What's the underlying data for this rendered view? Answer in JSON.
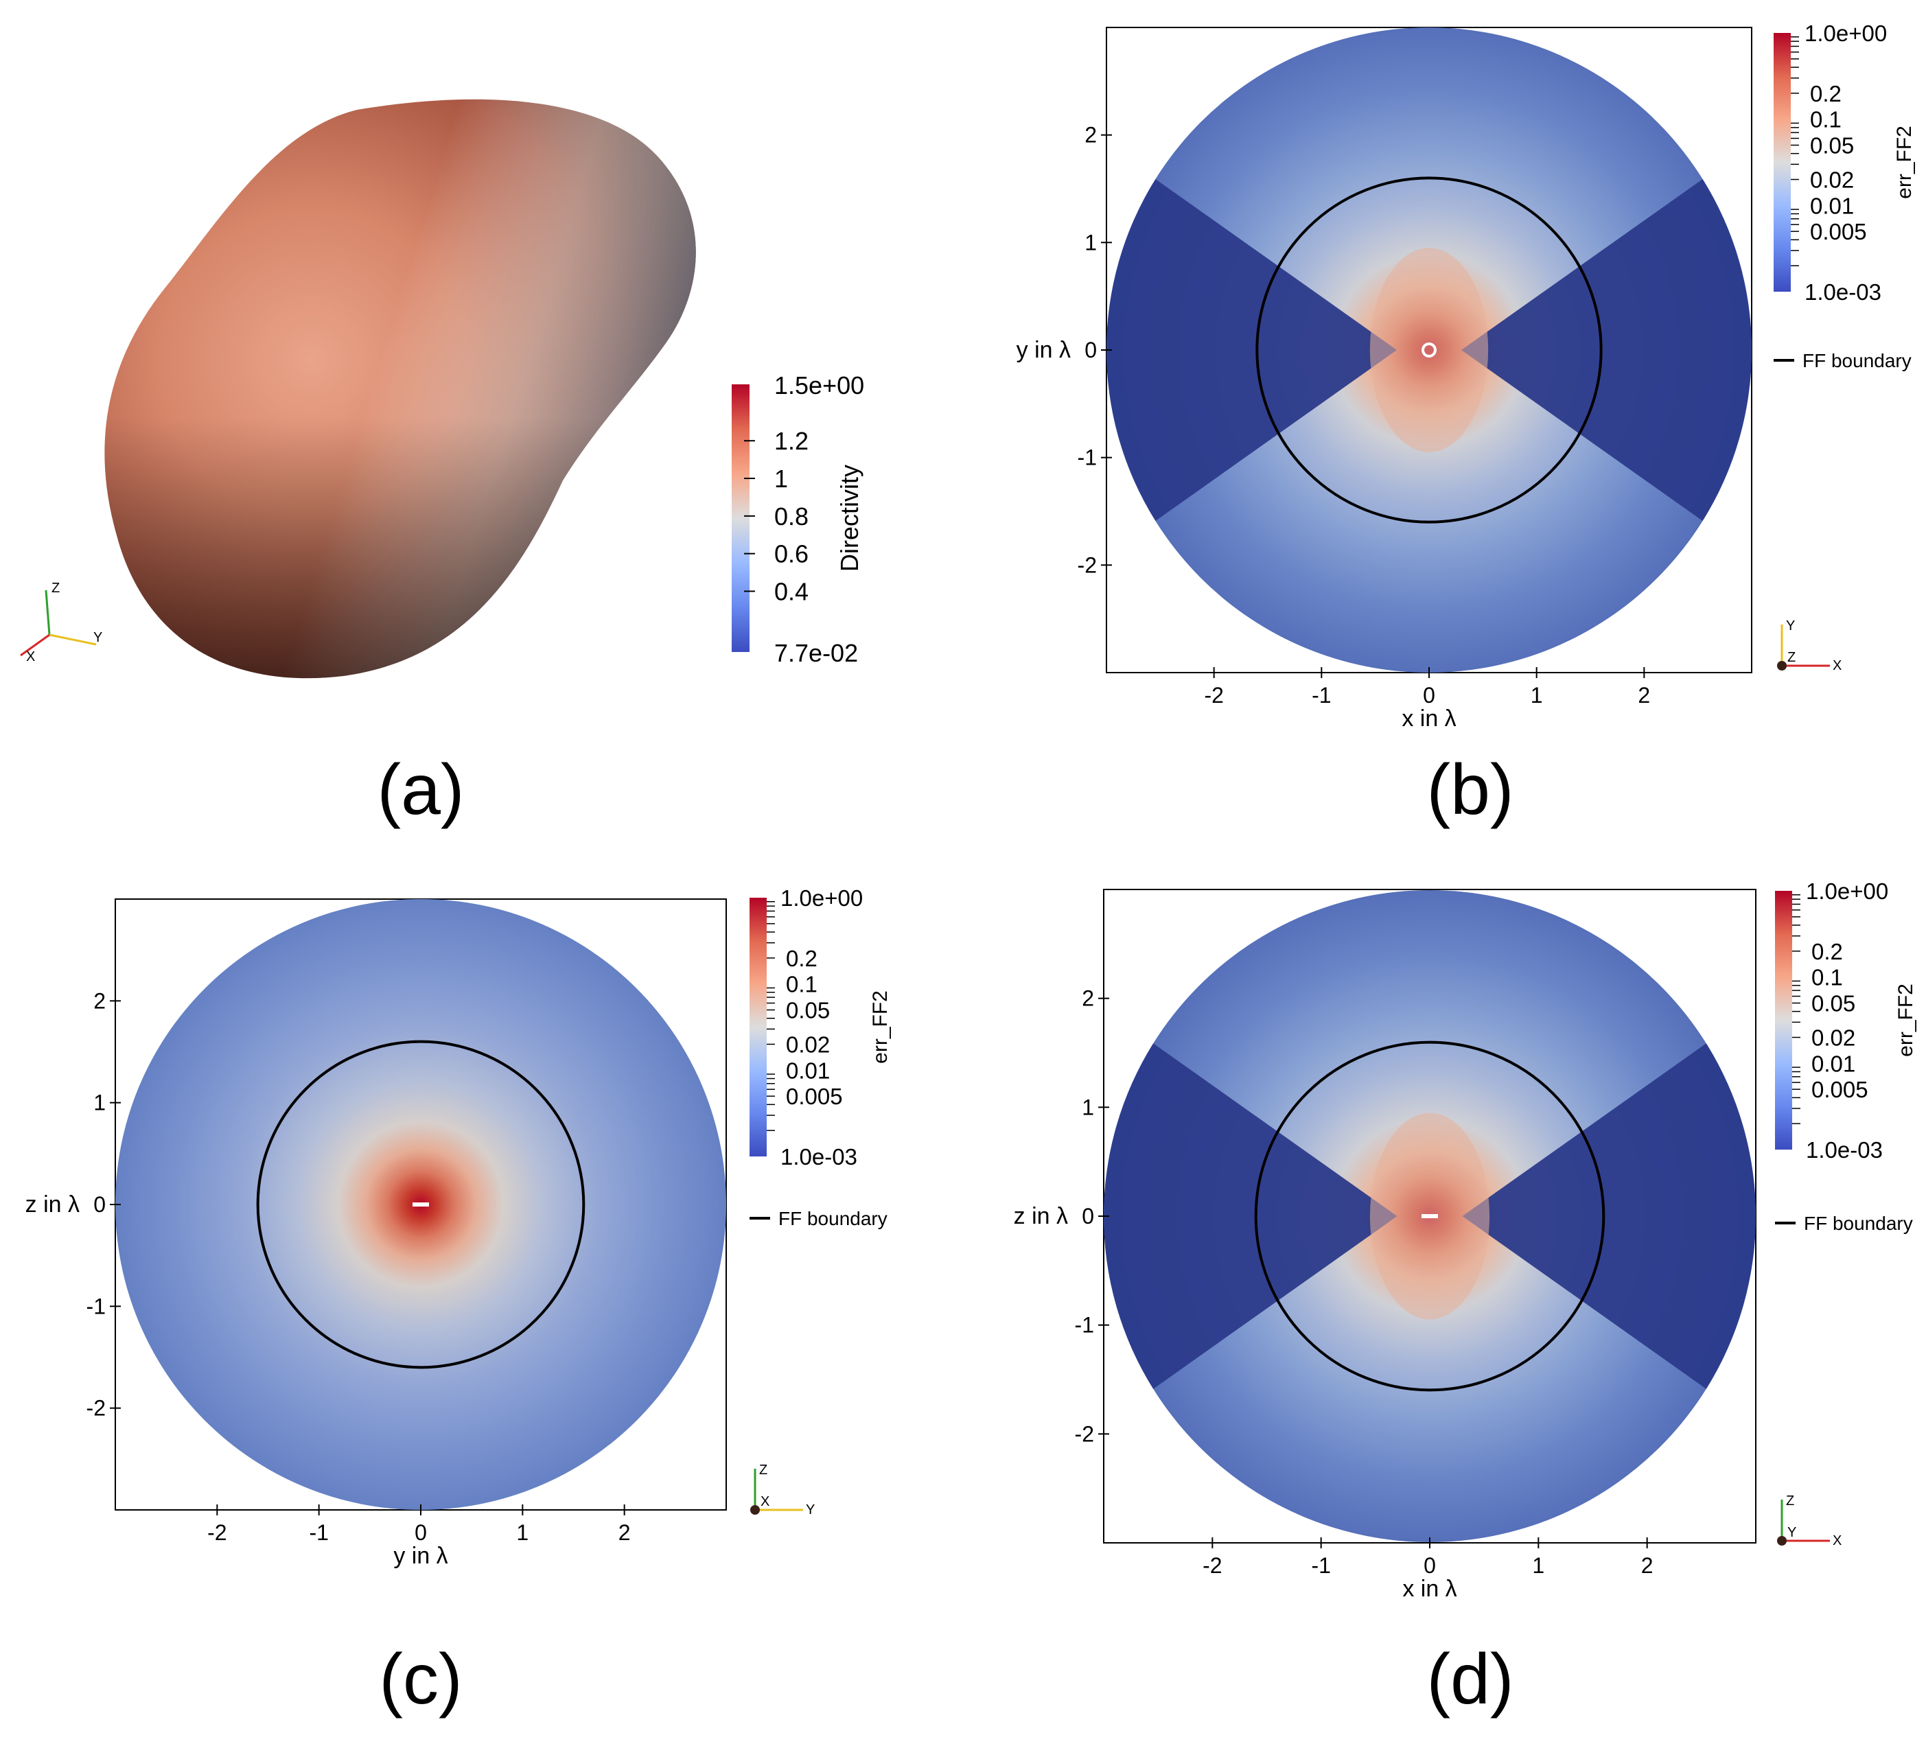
{
  "colormap": [
    "#3b4cc0",
    "#6788ee",
    "#9abbff",
    "#dddddd",
    "#f7a789",
    "#e26952",
    "#b40426"
  ],
  "shading_colors": {
    "dark_lobe": "#2b3a8a",
    "outer_blue": "#4f68b3",
    "frame": "#000000",
    "marker": "#ffffff"
  },
  "axes_triad_colors": {
    "x": "#d62728",
    "y": "#e8c020",
    "z": "#2ca02c",
    "origin": "#3a1f17"
  },
  "panels": {
    "a": {
      "label": "(a)",
      "colorbar": {
        "title": "Directivity",
        "max_label": "1.5e+00",
        "min_label": "7.7e-02",
        "ticks": [
          "1.2",
          "1",
          "0.8",
          "0.6",
          "0.4"
        ],
        "range": [
          0.077,
          1.5
        ]
      },
      "triad": {
        "vertical": "Z",
        "right": "Y",
        "left": "X"
      }
    },
    "b": {
      "label": "(b)",
      "triad": {
        "up": "Y",
        "right": "X",
        "origin": "Z"
      }
    },
    "c": {
      "label": "(c)",
      "triad": {
        "up": "Z",
        "right": "Y",
        "origin": "X"
      }
    },
    "d": {
      "label": "(d)",
      "triad": {
        "up": "Z",
        "right": "X",
        "origin": "Y"
      }
    }
  },
  "chart_data": [
    {
      "type": "surface",
      "panel": "a",
      "colorbar_title": "Directivity",
      "colorbar_range": [
        0.077,
        1.5
      ],
      "colorbar_ticks": [
        1.2,
        1,
        0.8,
        0.6,
        0.4
      ],
      "colorbar_end_labels": [
        "1.5e+00",
        "7.7e-02"
      ]
    },
    {
      "type": "heatmap",
      "panel": "b",
      "xlabel": "x in λ",
      "ylabel": "y in λ",
      "x_ticks": [
        -2,
        -1,
        0,
        1,
        2
      ],
      "y_ticks": [
        2,
        1,
        0,
        -1,
        -2
      ],
      "xlim": [
        -3,
        3
      ],
      "ylim": [
        -3,
        3
      ],
      "domain_radius": 3,
      "ff_boundary_radius": 1.6,
      "pattern": "dipole",
      "colorbar_title": "err_FF2",
      "colorbar_scale": "log",
      "colorbar_range": [
        0.001,
        1.0
      ],
      "colorbar_end_labels": [
        "1.0e+00",
        "1.0e-03"
      ],
      "colorbar_ticks": [
        "0.2",
        "0.1",
        "0.05",
        "0.02",
        "0.01",
        "0.005"
      ],
      "legend": "FF boundary",
      "legend_position": "right"
    },
    {
      "type": "heatmap",
      "panel": "c",
      "xlabel": "y in λ",
      "ylabel": "z in λ",
      "x_ticks": [
        -2,
        -1,
        0,
        1,
        2
      ],
      "y_ticks": [
        2,
        1,
        0,
        -1,
        -2
      ],
      "xlim": [
        -3,
        3
      ],
      "ylim": [
        -3,
        3
      ],
      "domain_radius": 3,
      "ff_boundary_radius": 1.6,
      "pattern": "isotropic",
      "colorbar_title": "err_FF2",
      "colorbar_scale": "log",
      "colorbar_range": [
        0.001,
        1.0
      ],
      "colorbar_end_labels": [
        "1.0e+00",
        "1.0e-03"
      ],
      "colorbar_ticks": [
        "0.2",
        "0.1",
        "0.05",
        "0.02",
        "0.01",
        "0.005"
      ],
      "legend": "FF boundary",
      "legend_position": "right"
    },
    {
      "type": "heatmap",
      "panel": "d",
      "xlabel": "x in λ",
      "ylabel": "z in λ",
      "x_ticks": [
        -2,
        -1,
        0,
        1,
        2
      ],
      "y_ticks": [
        2,
        1,
        0,
        -1,
        -2
      ],
      "xlim": [
        -3,
        3
      ],
      "ylim": [
        -3,
        3
      ],
      "domain_radius": 3,
      "ff_boundary_radius": 1.6,
      "pattern": "dipole",
      "colorbar_title": "err_FF2",
      "colorbar_scale": "log",
      "colorbar_range": [
        0.001,
        1.0
      ],
      "colorbar_end_labels": [
        "1.0e+00",
        "1.0e-03"
      ],
      "colorbar_ticks": [
        "0.2",
        "0.1",
        "0.05",
        "0.02",
        "0.01",
        "0.005"
      ],
      "legend": "FF boundary",
      "legend_position": "right"
    }
  ]
}
